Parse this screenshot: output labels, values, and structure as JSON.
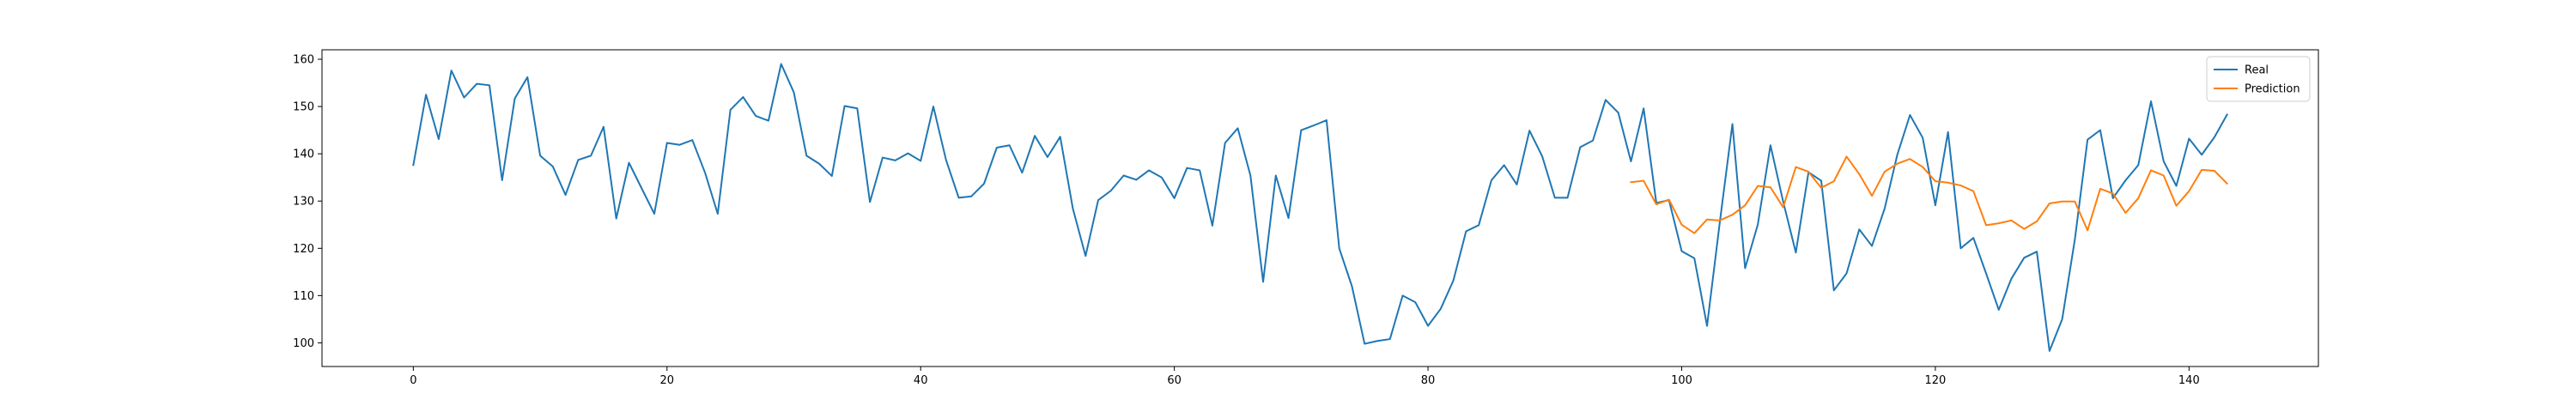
{
  "chart_data": {
    "type": "line",
    "title": "",
    "xlabel": "",
    "ylabel": "",
    "xlim": [
      -7.2,
      150.2
    ],
    "ylim": [
      95.0,
      162.0
    ],
    "xticks": [
      0,
      20,
      40,
      60,
      80,
      100,
      120,
      140
    ],
    "yticks": [
      100,
      110,
      120,
      130,
      140,
      150,
      160
    ],
    "grid": false,
    "legend_position": "top-right",
    "series": [
      {
        "name": "Real",
        "color": "#1f77b4",
        "x_start": 0,
        "values": [
          137.6,
          152.5,
          143.1,
          157.6,
          151.9,
          154.8,
          154.5,
          134.4,
          151.7,
          156.2,
          139.6,
          137.3,
          131.3,
          138.7,
          139.6,
          145.7,
          126.3,
          138.1,
          132.7,
          127.3,
          142.3,
          141.9,
          142.9,
          136.0,
          127.3,
          149.3,
          152.0,
          148.0,
          147.0,
          159.0,
          153.0,
          139.6,
          137.9,
          135.3,
          150.1,
          149.6,
          129.8,
          139.2,
          138.6,
          140.1,
          138.5,
          150.0,
          138.7,
          130.7,
          131.0,
          133.7,
          141.3,
          141.8,
          136.0,
          143.8,
          139.3,
          143.6,
          128.4,
          118.4,
          130.2,
          132.2,
          135.4,
          134.5,
          136.5,
          135.0,
          130.6,
          137.0,
          136.5,
          124.8,
          142.3,
          145.4,
          135.4,
          112.9,
          135.4,
          126.4,
          145.0,
          146.0,
          147.1,
          120.0,
          112.0,
          99.8,
          100.4,
          100.8,
          110.0,
          108.6,
          103.6,
          107.2,
          113.2,
          123.6,
          124.9,
          134.4,
          137.6,
          133.5,
          144.9,
          139.5,
          130.7,
          130.7,
          141.4,
          142.8,
          151.4,
          148.7,
          138.4,
          149.6,
          129.6,
          130.2,
          119.4,
          117.9,
          103.6,
          125.4,
          146.3,
          115.8,
          125.0,
          141.8,
          129.9,
          119.1,
          136.1,
          134.3,
          111.1,
          114.7,
          124.0,
          120.5,
          128.4,
          139.8,
          148.2,
          143.4,
          129.1,
          144.6,
          120.0,
          122.2,
          114.7,
          107.0,
          113.6,
          118.0,
          119.3,
          98.3,
          105.0,
          121.9,
          143.0,
          145.0,
          130.6,
          134.4,
          137.6,
          151.1,
          138.4,
          133.2,
          143.2,
          139.8,
          143.5,
          148.3
        ]
      },
      {
        "name": "Prediction",
        "color": "#ff7f0e",
        "x_start": 96,
        "values": [
          134.0,
          134.3,
          129.3,
          130.3,
          125.0,
          123.2,
          126.1,
          125.9,
          127.1,
          129.1,
          133.2,
          132.9,
          128.7,
          137.2,
          136.2,
          132.8,
          134.2,
          139.4,
          135.7,
          131.1,
          136.2,
          137.9,
          138.9,
          137.2,
          134.2,
          133.9,
          133.3,
          132.1,
          124.9,
          125.3,
          125.9,
          124.1,
          125.7,
          129.5,
          129.9,
          129.9,
          123.8,
          132.6,
          131.6,
          127.5,
          130.6,
          136.5,
          135.4,
          129.0,
          132.1,
          136.6,
          136.4,
          133.7
        ]
      }
    ]
  }
}
